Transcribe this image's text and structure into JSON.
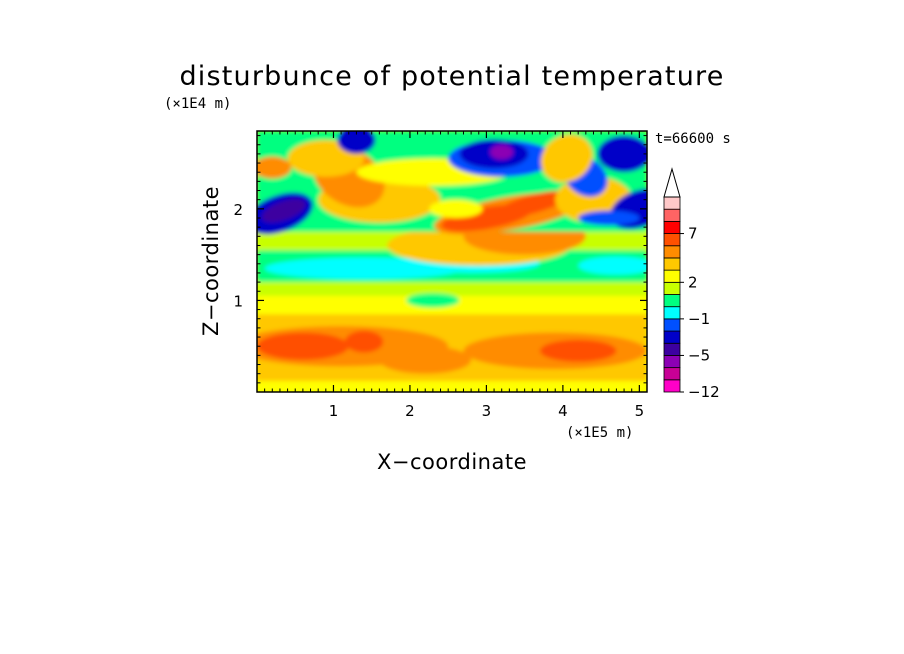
{
  "chart_data": {
    "type": "heatmap",
    "title": "disturbunce of potential temperature",
    "xlabel": "X−coordinate",
    "ylabel": "Z−coordinate",
    "x_unit": "(×1E5 m)",
    "y_unit": "(×1E4 m)",
    "time_label": "t=66600 s",
    "xlim": [
      0,
      5.1
    ],
    "ylim": [
      0,
      2.85
    ],
    "x_ticks": [
      "1",
      "2",
      "3",
      "4",
      "5"
    ],
    "y_ticks": [
      "1",
      "2"
    ],
    "colorbar": {
      "extend": "max",
      "levels": [
        -12,
        -10,
        -8,
        -5,
        -4,
        -3,
        -1,
        0,
        1,
        2,
        3,
        4,
        5,
        7,
        9
      ],
      "tick_labels": [
        "−12",
        "−5",
        "−1",
        "2",
        "7"
      ],
      "colors": [
        "#ff00c8",
        "#c80096",
        "#8c00b4",
        "#3c00a0",
        "#0000c8",
        "#0050ff",
        "#00ffff",
        "#00ff80",
        "#c8ff00",
        "#ffff00",
        "#ffc800",
        "#ff8c00",
        "#ff5000",
        "#ff0000",
        "#ff6464",
        "#ffc8c8"
      ]
    },
    "grid": false
  }
}
